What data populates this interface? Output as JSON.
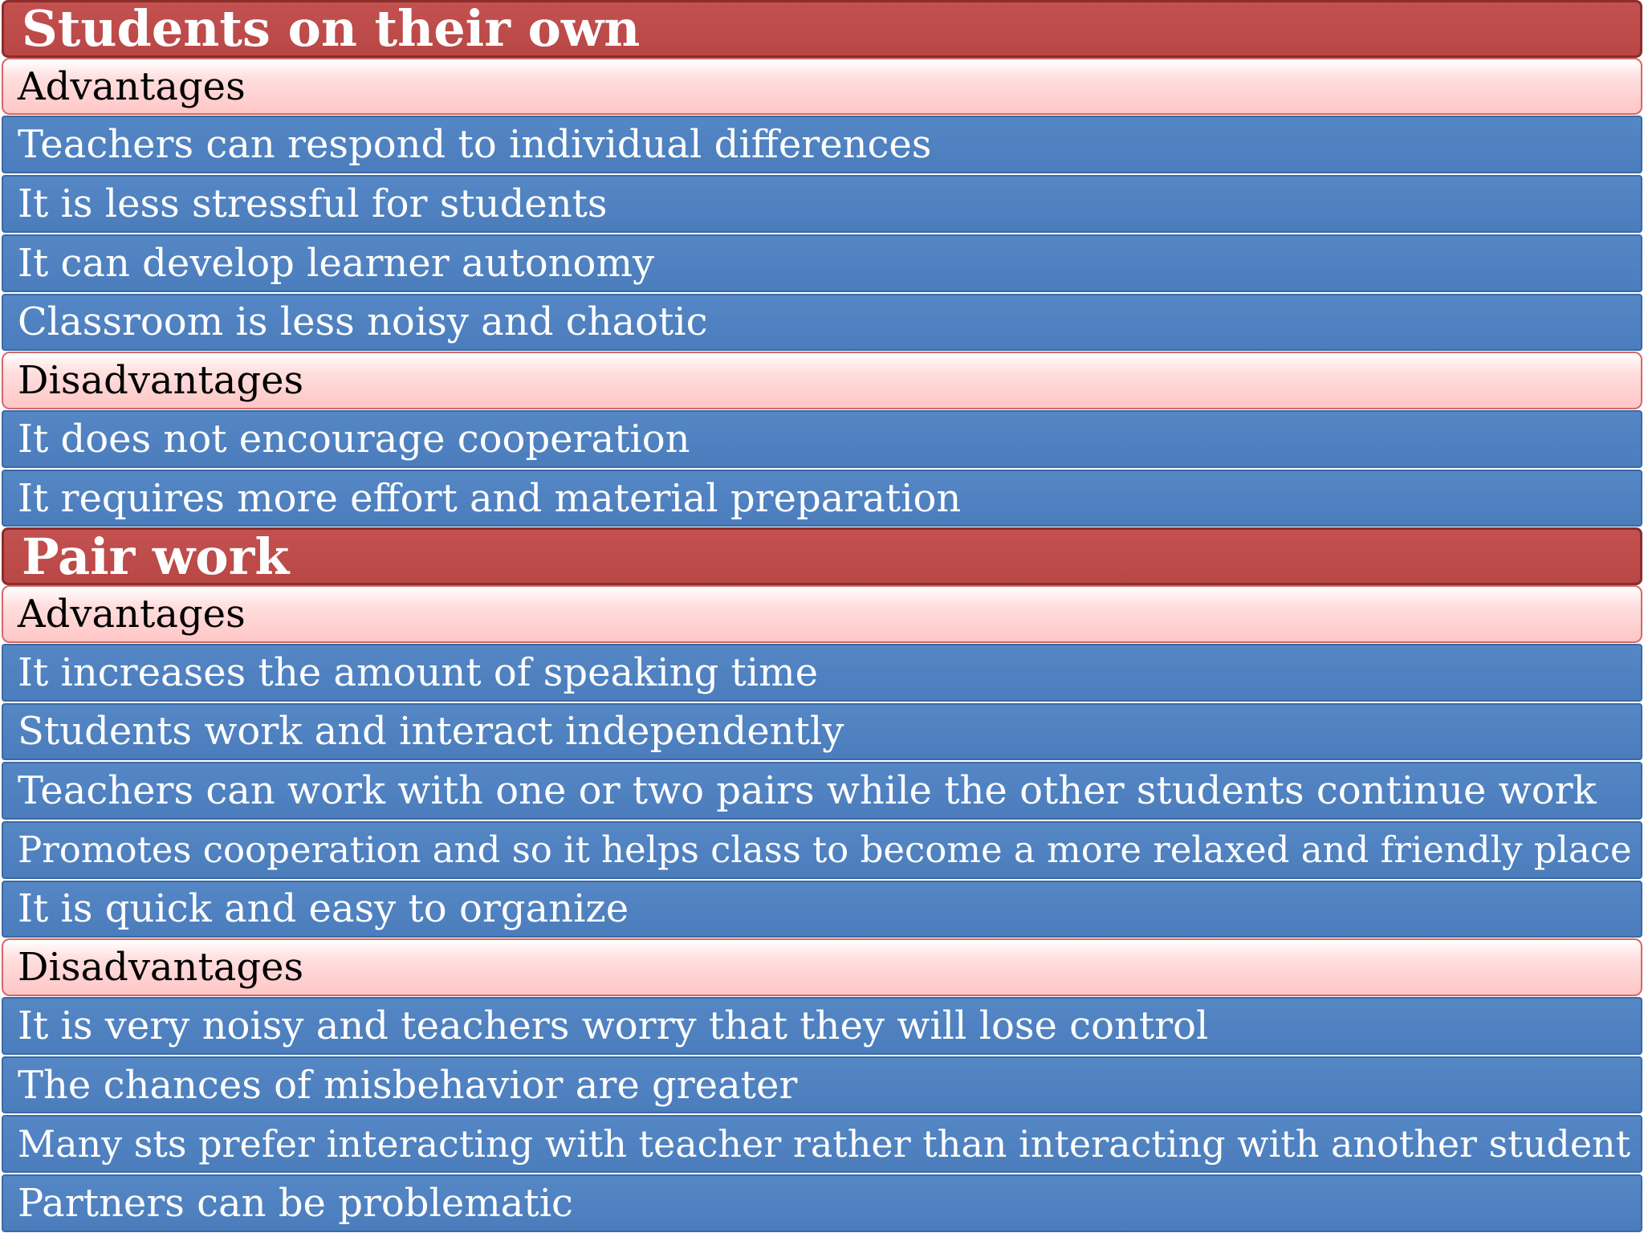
{
  "sections": [
    {
      "title": "Students on their own",
      "advantages_label": "Advantages",
      "advantages": [
        "Teachers can respond to individual differences",
        "It is less stressful for students",
        "It can develop learner autonomy",
        "Classroom is less noisy and chaotic"
      ],
      "disadvantages_label": "Disadvantages",
      "disadvantages": [
        "It does not encourage cooperation",
        "It requires more effort and material preparation"
      ]
    },
    {
      "title": "Pair work",
      "advantages_label": "Advantages",
      "advantages": [
        "It increases the amount of speaking time",
        "Students work and interact independently",
        "Teachers can work with one or two pairs while the other students continue work",
        "Promotes cooperation and so it helps class to become a more relaxed and friendly place",
        "It is quick and easy to organize"
      ],
      "disadvantages_label": "Disadvantages",
      "disadvantages": [
        "It is very noisy and teachers worry that they will lose control",
        "The chances of misbehavior are greater",
        "Many sts prefer interacting with teacher rather than interacting with another student",
        "Partners can be problematic"
      ]
    }
  ],
  "colors": {
    "section_header": "#c0504d",
    "sub_header": "#ffd0d0",
    "item_row": "#4f81bd"
  }
}
